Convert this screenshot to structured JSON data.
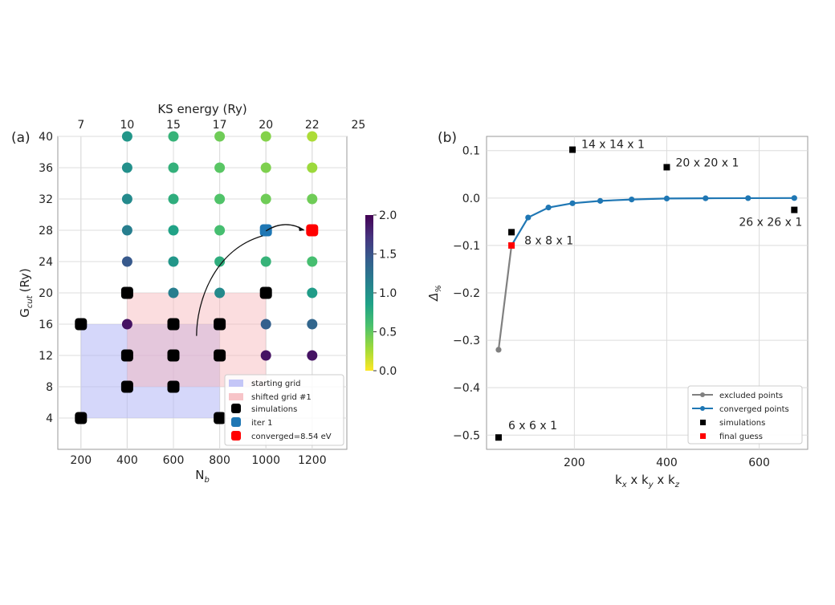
{
  "chart_data": [
    {
      "panel": "(a)",
      "type": "scatter",
      "xlabel": "N",
      "xlabel_sub": "b",
      "ylabel": "G",
      "ylabel_sub": "cut",
      "ylabel_unit": "(Ry)",
      "top_xlabel": "KS energy (Ry)",
      "xlim": [
        100,
        1350
      ],
      "ylim": [
        0,
        40
      ],
      "x_ticks": [
        200,
        400,
        600,
        800,
        1000,
        1200
      ],
      "y_ticks": [
        4,
        8,
        12,
        16,
        20,
        24,
        28,
        32,
        36,
        40
      ],
      "top_ticks": [
        {
          "x": 200,
          "label": "7"
        },
        {
          "x": 400,
          "label": "10"
        },
        {
          "x": 600,
          "label": "15"
        },
        {
          "x": 800,
          "label": "17"
        },
        {
          "x": 1000,
          "label": "20"
        },
        {
          "x": 1200,
          "label": "22"
        },
        {
          "x": 1400,
          "label": "25"
        }
      ],
      "grid": true,
      "colorbar": {
        "min": 0.0,
        "max": 2.0,
        "ticks": [
          "2.0",
          "1.5",
          "1.0",
          "0.5",
          "0.0"
        ],
        "colormap": "viridis"
      },
      "regions": [
        {
          "name": "starting grid",
          "x": [
            200,
            800
          ],
          "y": [
            4,
            16
          ],
          "color": "#b3b6f5"
        },
        {
          "name": "shifted grid #1",
          "x": [
            400,
            1000
          ],
          "y": [
            8,
            20
          ],
          "color": "#f7b3b8"
        }
      ],
      "cbar_colors": [
        "#440154",
        "#46337e",
        "#365c8d",
        "#277f8e",
        "#1fa187",
        "#4ac16d",
        "#a0da39",
        "#fde725"
      ],
      "color_columns": [
        {
          "x": 400,
          "y": [
            12,
            16,
            20,
            24,
            28,
            32,
            36,
            40
          ],
          "values": [
            2.0,
            1.9,
            1.8,
            1.45,
            1.15,
            1.05,
            1.0,
            0.95
          ]
        },
        {
          "x": 600,
          "y": [
            12,
            16,
            20,
            24,
            28,
            32,
            36,
            40
          ],
          "values": [
            1.95,
            1.9,
            1.15,
            0.95,
            0.85,
            0.75,
            0.72,
            0.7
          ]
        },
        {
          "x": 800,
          "y": [
            12,
            16,
            20,
            24,
            28,
            32,
            36,
            40
          ],
          "values": [
            1.95,
            1.85,
            1.05,
            0.75,
            0.6,
            0.55,
            0.52,
            0.45
          ]
        },
        {
          "x": 1000,
          "y": [
            12,
            16,
            24,
            32,
            36,
            40
          ],
          "values": [
            1.9,
            1.4,
            0.7,
            0.45,
            0.4,
            0.38
          ]
        },
        {
          "x": 1200,
          "y": [
            12,
            16,
            20,
            24,
            32,
            36,
            40
          ],
          "values": [
            1.9,
            1.35,
            0.9,
            0.6,
            0.45,
            0.3,
            0.25
          ]
        }
      ],
      "simulations": [
        {
          "x": 200,
          "y": 16
        },
        {
          "x": 200,
          "y": 4
        },
        {
          "x": 400,
          "y": 20
        },
        {
          "x": 400,
          "y": 12
        },
        {
          "x": 400,
          "y": 8
        },
        {
          "x": 600,
          "y": 16
        },
        {
          "x": 600,
          "y": 12
        },
        {
          "x": 600,
          "y": 8
        },
        {
          "x": 800,
          "y": 16
        },
        {
          "x": 800,
          "y": 12
        },
        {
          "x": 800,
          "y": 4
        },
        {
          "x": 1000,
          "y": 20
        }
      ],
      "iter1": [
        {
          "x": 1000,
          "y": 28
        }
      ],
      "converged": [
        {
          "x": 1200,
          "y": 28
        }
      ],
      "legend": [
        "starting grid",
        "shifted grid #1",
        "simulations",
        "iter 1",
        "converged=8.54 eV"
      ],
      "legend_colors": {
        "starting_grid": "#c4c6f7",
        "shifted_grid": "#f7c4c8",
        "simulations": "#000000",
        "iter1": "#1f77b4",
        "converged": "#ff0000"
      },
      "arrows": [
        {
          "from": [
            700,
            14.5
          ],
          "to": [
            1000,
            27.5
          ]
        },
        {
          "from": [
            1000,
            27.5
          ],
          "to": [
            1200,
            28
          ]
        }
      ]
    },
    {
      "panel": "(b)",
      "type": "line",
      "xlabel": "k",
      "ylabel": "Δ",
      "ylabel_sub": "%",
      "xlim": [
        10,
        705
      ],
      "ylim": [
        -0.53,
        0.13
      ],
      "x_ticks": [
        200,
        400,
        600
      ],
      "y_ticks": [
        0.1,
        0.0,
        -0.1,
        -0.2,
        -0.3,
        -0.4,
        -0.5
      ],
      "y_tick_labels": [
        "0.1",
        "0.0",
        "−0.1",
        "−0.2",
        "−0.3",
        "−0.4",
        "−0.5"
      ],
      "grid": true,
      "series": [
        {
          "name": "excluded points",
          "color": "#808080",
          "x": [
            36,
            64
          ],
          "y": [
            -0.32,
            -0.1
          ]
        },
        {
          "name": "converged points",
          "color": "#1f77b4",
          "x": [
            64,
            100,
            144,
            196,
            256,
            324,
            400,
            484,
            576,
            676
          ],
          "y": [
            -0.1,
            -0.041,
            -0.02,
            -0.011,
            -0.006,
            -0.003,
            -0.001,
            -0.0005,
            -0.0002,
            0.0
          ]
        }
      ],
      "simulations": [
        {
          "x": 36,
          "y": -0.505,
          "label": "6 x 6 x 1"
        },
        {
          "x": 64,
          "y": -0.072,
          "label": "8 x 8 x 1"
        },
        {
          "x": 196,
          "y": 0.102,
          "label": "14 x 14 x 1"
        },
        {
          "x": 400,
          "y": 0.065,
          "label": "20 x 20 x 1"
        },
        {
          "x": 676,
          "y": -0.025,
          "label": "26 x 26 x 1"
        }
      ],
      "final_guess": [
        {
          "x": 64,
          "y": -0.1
        }
      ],
      "legend": [
        "excluded points",
        "converged points",
        "simulations",
        "final guess"
      ],
      "legend_colors": {
        "simulations": "#000000",
        "final_guess": "#ff0000"
      }
    }
  ]
}
